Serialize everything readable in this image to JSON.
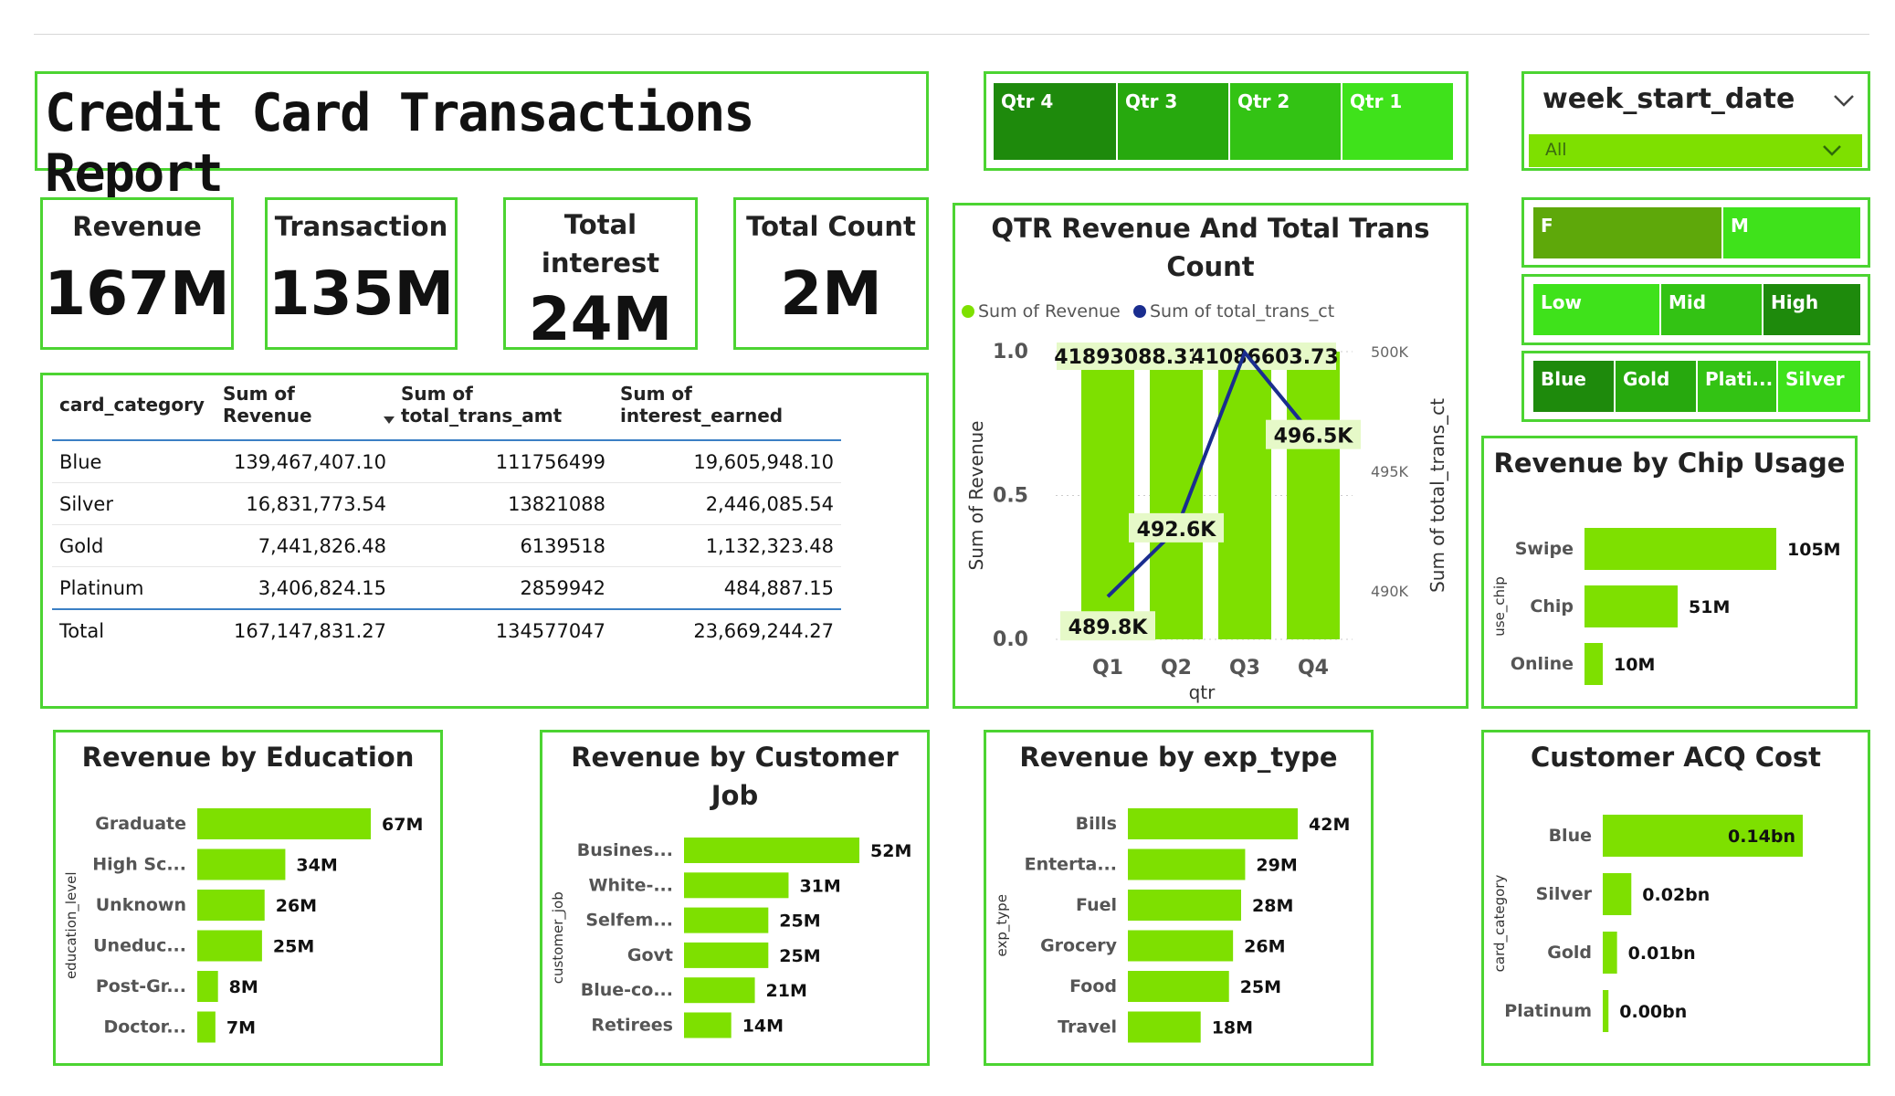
{
  "report": {
    "title": "Credit Card Transactions Report"
  },
  "kpis": {
    "revenue": {
      "label": "Revenue",
      "value": "167M"
    },
    "transaction": {
      "label": "Transaction",
      "value": "135M"
    },
    "interest": {
      "label": "Total interest",
      "value": "24M"
    },
    "count": {
      "label": "Total Count",
      "value": "2M"
    }
  },
  "slicers": {
    "quarter": [
      "Qtr 4",
      "Qtr 3",
      "Qtr 2",
      "Qtr 1"
    ],
    "week": {
      "label": "week_start_date",
      "value": "All"
    },
    "gender": [
      "F",
      "M"
    ],
    "income": [
      "Low",
      "Mid",
      "High"
    ],
    "card": [
      "Blue",
      "Gold",
      "Plati...",
      "Silver"
    ]
  },
  "colors": {
    "accent": "#7ee000",
    "border": "#4cd432",
    "line": "#1a2d8f"
  },
  "table": {
    "headers": [
      "card_category",
      "Sum of Revenue",
      "Sum of total_trans_amt",
      "Sum of interest_earned"
    ],
    "rows": [
      [
        "Blue",
        "139,467,407.10",
        "111756499",
        "19,605,948.10"
      ],
      [
        "Silver",
        "16,831,773.54",
        "13821088",
        "2,446,085.54"
      ],
      [
        "Gold",
        "7,441,826.48",
        "6139518",
        "1,132,323.48"
      ],
      [
        "Platinum",
        "3,406,824.15",
        "2859942",
        "484,887.15"
      ]
    ],
    "total": [
      "Total",
      "167,147,831.27",
      "134577047",
      "23,669,244.27"
    ]
  },
  "chart_data": [
    {
      "type": "bar+line",
      "id": "qtr",
      "title": "QTR Revenue And Total Trans Count",
      "legend": [
        "Sum of Revenue",
        "Sum of total_trans_ct"
      ],
      "categories": [
        "Q1",
        "Q2",
        "Q3",
        "Q4"
      ],
      "xlabel": "qtr",
      "ylabel": "Sum of Revenue",
      "y2label": "Sum of total_trans_ct",
      "yticks": [
        "0.0",
        "0.5",
        "1.0"
      ],
      "y2ticks": [
        "490K",
        "495K",
        "500K"
      ],
      "bar_labels": [
        "41893088.31",
        "41086603.73"
      ],
      "line_values": [
        489.8,
        492.6,
        500.0,
        496.5
      ],
      "line_labels": [
        "489.8K",
        "492.6K",
        "",
        "496.5K"
      ]
    },
    {
      "type": "bar",
      "id": "chip",
      "title": "Revenue by Chip Usage",
      "ylabel": "use_chip",
      "categories": [
        "Swipe",
        "Chip",
        "Online"
      ],
      "values": [
        105,
        51,
        10
      ],
      "labels": [
        "105M",
        "51M",
        "10M"
      ]
    },
    {
      "type": "bar",
      "id": "edu",
      "title": "Revenue by Education",
      "ylabel": "education_level",
      "categories": [
        "Graduate",
        "High Sc...",
        "Unknown",
        "Uneduc...",
        "Post-Gr...",
        "Doctor..."
      ],
      "values": [
        67,
        34,
        26,
        25,
        8,
        7
      ],
      "labels": [
        "67M",
        "34M",
        "26M",
        "25M",
        "8M",
        "7M"
      ]
    },
    {
      "type": "bar",
      "id": "job",
      "title": "Revenue by Customer Job",
      "ylabel": "customer_job",
      "categories": [
        "Busines...",
        "White-...",
        "Selfem...",
        "Govt",
        "Blue-co...",
        "Retirees"
      ],
      "values": [
        52,
        31,
        25,
        25,
        21,
        14
      ],
      "labels": [
        "52M",
        "31M",
        "25M",
        "25M",
        "21M",
        "14M"
      ]
    },
    {
      "type": "bar",
      "id": "exp",
      "title": "Revenue by exp_type",
      "ylabel": "exp_type",
      "categories": [
        "Bills",
        "Enterta...",
        "Fuel",
        "Grocery",
        "Food",
        "Travel"
      ],
      "values": [
        42,
        29,
        28,
        26,
        25,
        18
      ],
      "labels": [
        "42M",
        "29M",
        "28M",
        "26M",
        "25M",
        "18M"
      ]
    },
    {
      "type": "bar",
      "id": "acq",
      "title": "Customer ACQ Cost",
      "ylabel": "card_category",
      "categories": [
        "Blue",
        "Silver",
        "Gold",
        "Platinum"
      ],
      "values": [
        0.14,
        0.02,
        0.01,
        0.004
      ],
      "labels": [
        "0.14bn",
        "0.02bn",
        "0.01bn",
        "0.00bn"
      ]
    }
  ]
}
